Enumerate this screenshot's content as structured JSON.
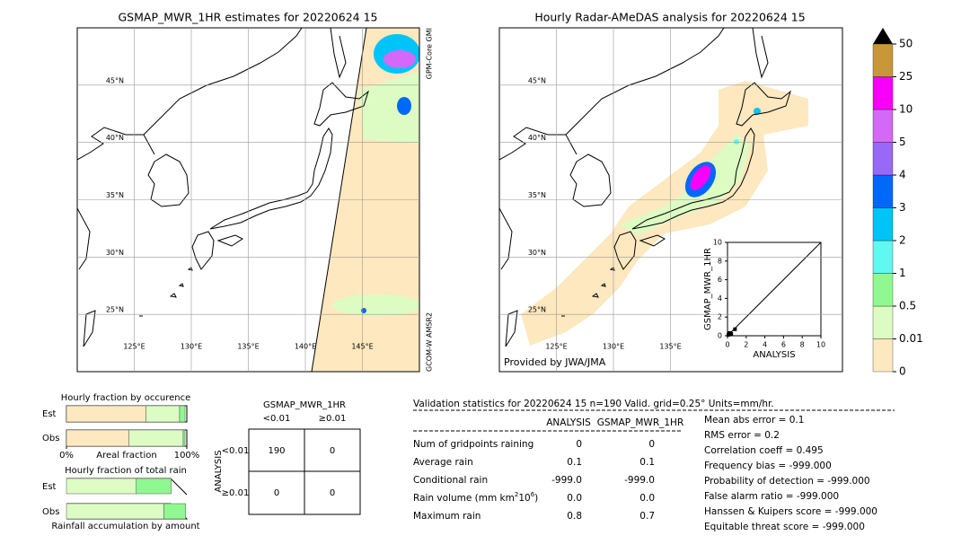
{
  "maps": [
    {
      "title": "GSMAP_MWR_1HR estimates for 20220624 15",
      "lon_ticks": [
        {
          "value": 125,
          "label": "125°E"
        },
        {
          "value": 130,
          "label": "130°E"
        },
        {
          "value": 135,
          "label": "135°E"
        },
        {
          "value": 140,
          "label": "140°E"
        },
        {
          "value": 145,
          "label": "145°E"
        }
      ],
      "lat_ticks": [
        {
          "value": 25,
          "label": "25°N"
        },
        {
          "value": 30,
          "label": "30°N"
        },
        {
          "value": 35,
          "label": "35°N"
        },
        {
          "value": 40,
          "label": "40°N"
        },
        {
          "value": 45,
          "label": "45°N"
        }
      ],
      "lonlim": [
        120,
        150
      ],
      "latlim": [
        20,
        50
      ],
      "side_top": "GPM-Core GMI",
      "side_bottom": "GCOM-W AMSR2"
    },
    {
      "title": "Hourly Radar-AMeDAS analysis for 20220624 15",
      "lon_ticks": [
        {
          "value": 125,
          "label": "125°E"
        },
        {
          "value": 130,
          "label": "130°E"
        },
        {
          "value": 135,
          "label": "135°E"
        }
      ],
      "lat_ticks": [
        {
          "value": 25,
          "label": "25°N"
        },
        {
          "value": 30,
          "label": "30°N"
        },
        {
          "value": 35,
          "label": "35°N"
        },
        {
          "value": 40,
          "label": "40°N"
        },
        {
          "value": 45,
          "label": "45°N"
        }
      ],
      "lonlim": [
        120,
        150
      ],
      "latlim": [
        20,
        50
      ],
      "credit": "Provided by JWA/JMA"
    }
  ],
  "colorbar": {
    "ticks": [
      0,
      0.01,
      0.5,
      1,
      2,
      3,
      4,
      5,
      10,
      25,
      50
    ],
    "colors": [
      "#fde8bf",
      "#dcfcc4",
      "#90f890",
      "#60f8f0",
      "#00c4f8",
      "#0068f8",
      "#9868f8",
      "#d468f8",
      "#f800f8",
      "#c89838"
    ]
  },
  "scatter": {
    "xlabel": "ANALYSIS",
    "ylabel": "GSMAP_MWR_1HR",
    "xlim": [
      0,
      10
    ],
    "ylim": [
      0,
      10
    ],
    "xticks": [
      0,
      2,
      4,
      6,
      8,
      10
    ],
    "yticks": [
      0,
      2,
      4,
      6,
      8,
      10
    ],
    "x": [
      0.1,
      0.2,
      0.4,
      0.8
    ],
    "y": [
      0.1,
      0.3,
      0.2,
      0.7
    ]
  },
  "fraction_occurrence": {
    "title": "Hourly fraction by occurence",
    "xlabel": "Areal fraction",
    "xticks": [
      {
        "value": 0,
        "label": "0%"
      },
      {
        "value": 100,
        "label": "100%"
      }
    ],
    "rows": [
      "Est",
      "Obs"
    ],
    "colors": [
      "#fde8bf",
      "#dcfcc4",
      "#90f890"
    ],
    "segments": [
      [
        66,
        28,
        4.5
      ],
      [
        52,
        45,
        1.5
      ]
    ]
  },
  "fraction_total": {
    "title": "Hourly fraction of total rain",
    "xlabel": "Rainfall accumulation by amount",
    "rows": [
      "Est",
      "Obs"
    ],
    "colors": [
      "#dcfcc4",
      "#90f890"
    ],
    "segments": [
      [
        58,
        29
      ],
      [
        81,
        18
      ]
    ]
  },
  "contingency": {
    "title": "GSMAP_MWR_1HR",
    "cols": [
      "<0.01",
      "≥0.01"
    ],
    "row_title": "ANALYSIS",
    "rows": [
      "<0.01",
      "≥0.01"
    ],
    "cells": [
      [
        "190",
        "0"
      ],
      [
        "0",
        "0"
      ]
    ]
  },
  "stats": {
    "header": "Validation statistics for 20220624 15  n=190 Valid. grid=0.25° Units=mm/hr.",
    "cols": [
      "ANALYSIS",
      "GSMAP_MWR_1HR"
    ],
    "rows": [
      {
        "label": "Num of gridpoints raining",
        "values": [
          "0",
          "0"
        ]
      },
      {
        "label": "Average rain",
        "values": [
          "0.1",
          "0.1"
        ]
      },
      {
        "label": "Conditional rain",
        "values": [
          "-999.0",
          "-999.0"
        ]
      },
      {
        "label": "Rain volume (mm km",
        "sup": "2",
        "mid": "10",
        "sup2": "6",
        "end": ")",
        "values": [
          "0.0",
          "0.0"
        ]
      },
      {
        "label": "Maximum rain",
        "values": [
          "0.8",
          "0.7"
        ]
      }
    ],
    "scores": [
      "Mean abs error =    0.1",
      "RMS error =    0.2",
      "Correlation coeff =  0.495",
      "Frequency bias = -999.000",
      "Probability of detection = -999.000",
      "False alarm ratio = -999.000",
      "Hanssen & Kuipers score = -999.000",
      "Equitable threat score = -999.000"
    ]
  }
}
